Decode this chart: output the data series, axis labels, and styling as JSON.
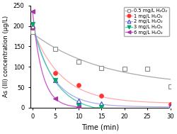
{
  "title": "",
  "xlabel": "Time (min)",
  "ylabel": "As (III) concentration (μg/L)",
  "xlim": [
    -0.5,
    30
  ],
  "ylim": [
    0,
    250
  ],
  "yticks": [
    0,
    50,
    100,
    150,
    200,
    250
  ],
  "xticks": [
    0,
    5,
    10,
    15,
    20,
    25,
    30
  ],
  "series": [
    {
      "label": "0.5 mg/L H₂O₂",
      "line_color": "#aaaaaa",
      "marker": "s",
      "marker_facecolor": "white",
      "marker_edgecolor": "#888888",
      "x": [
        0,
        5,
        10,
        15,
        20,
        25,
        30
      ],
      "y": [
        185,
        143,
        113,
        97,
        95,
        95,
        52
      ]
    },
    {
      "label": "1 mg/L H₂O₂",
      "line_color": "#ffaaaa",
      "marker": "o",
      "marker_facecolor": "#ff3333",
      "marker_edgecolor": "#ff3333",
      "x": [
        0,
        5,
        10,
        15,
        30
      ],
      "y": [
        195,
        85,
        55,
        30,
        8
      ]
    },
    {
      "label": "2 mg/L H₂O₂",
      "line_color": "#aaaaee",
      "marker": "^",
      "marker_facecolor": "white",
      "marker_edgecolor": "#4444cc",
      "x": [
        0,
        5,
        10,
        15,
        30
      ],
      "y": [
        200,
        68,
        18,
        10,
        3
      ]
    },
    {
      "label": "3 mg/L H₂O₂",
      "line_color": "#44ccaa",
      "marker": "v",
      "marker_facecolor": "#00aa66",
      "marker_edgecolor": "#00aa66",
      "x": [
        0,
        5,
        10,
        15
      ],
      "y": [
        205,
        68,
        5,
        2
      ]
    },
    {
      "label": "6 mg/L H₂O₂",
      "line_color": "#cc55cc",
      "marker": "<",
      "marker_facecolor": "#aa33aa",
      "marker_edgecolor": "#aa33aa",
      "x": [
        0,
        5,
        10
      ],
      "y": [
        235,
        22,
        2
      ]
    }
  ]
}
